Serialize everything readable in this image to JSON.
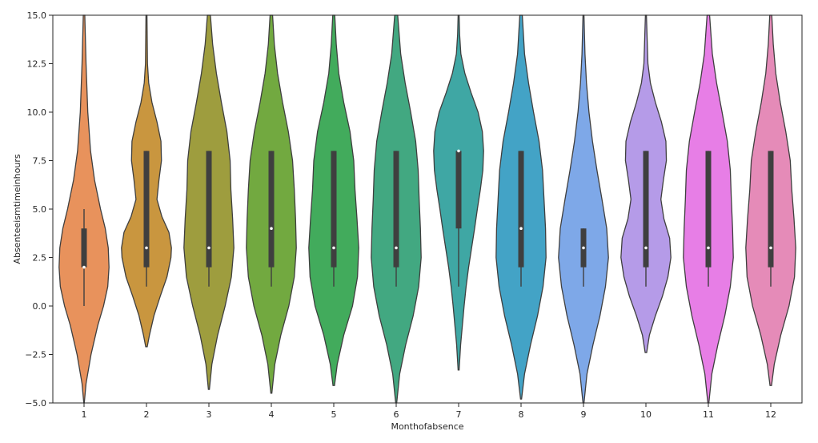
{
  "chart_data": {
    "type": "violin",
    "title": "",
    "xlabel": "Monthofabsence",
    "ylabel": "Absenteeismtimeinhours",
    "ylim": [
      -5.0,
      15.0
    ],
    "yticks": [
      -5.0,
      -2.5,
      0.0,
      2.5,
      5.0,
      7.5,
      10.0,
      12.5,
      15.0
    ],
    "ytick_labels": [
      "−5.0",
      "−2.5",
      "0.0",
      "2.5",
      "5.0",
      "7.5",
      "10.0",
      "12.5",
      "15.0"
    ],
    "categories": [
      "1",
      "2",
      "3",
      "4",
      "5",
      "6",
      "7",
      "8",
      "9",
      "10",
      "11",
      "12"
    ],
    "grid": false,
    "violins": [
      {
        "category": "1",
        "color": "#e8925c",
        "median": 2,
        "q1": 2,
        "q3": 4,
        "whisker_low": 0,
        "whisker_high": 5,
        "extent": [
          -5.0,
          15.0
        ],
        "profile": [
          [
            -5.0,
            0.01
          ],
          [
            -4.0,
            0.08
          ],
          [
            -2.5,
            0.28
          ],
          [
            -1.0,
            0.55
          ],
          [
            0.0,
            0.78
          ],
          [
            1.0,
            0.95
          ],
          [
            2.0,
            1.0
          ],
          [
            3.0,
            0.97
          ],
          [
            4.0,
            0.85
          ],
          [
            5.0,
            0.66
          ],
          [
            6.5,
            0.42
          ],
          [
            8.0,
            0.26
          ],
          [
            10.0,
            0.15
          ],
          [
            12.5,
            0.08
          ],
          [
            15.0,
            0.03
          ]
        ]
      },
      {
        "category": "2",
        "color": "#c9963f",
        "median": 3,
        "q1": 2,
        "q3": 8,
        "whisker_low": 1,
        "whisker_high": 8,
        "extent": [
          -2.1,
          15.0
        ],
        "profile": [
          [
            -2.1,
            0.03
          ],
          [
            -1.5,
            0.12
          ],
          [
            -0.5,
            0.3
          ],
          [
            0.5,
            0.55
          ],
          [
            1.5,
            0.82
          ],
          [
            2.5,
            0.98
          ],
          [
            3.0,
            1.0
          ],
          [
            3.8,
            0.9
          ],
          [
            4.6,
            0.62
          ],
          [
            5.5,
            0.42
          ],
          [
            6.5,
            0.5
          ],
          [
            7.5,
            0.6
          ],
          [
            8.5,
            0.58
          ],
          [
            9.5,
            0.42
          ],
          [
            10.5,
            0.22
          ],
          [
            11.5,
            0.09
          ],
          [
            12.5,
            0.04
          ],
          [
            15.0,
            0.02
          ]
        ]
      },
      {
        "category": "3",
        "color": "#9e9d3e",
        "median": 3,
        "q1": 2,
        "q3": 8,
        "whisker_low": 1,
        "whisker_high": 8,
        "extent": [
          -4.3,
          15.0
        ],
        "profile": [
          [
            -4.3,
            0.02
          ],
          [
            -3.0,
            0.12
          ],
          [
            -1.5,
            0.35
          ],
          [
            0.0,
            0.65
          ],
          [
            1.5,
            0.9
          ],
          [
            3.0,
            1.0
          ],
          [
            4.5,
            0.95
          ],
          [
            6.0,
            0.88
          ],
          [
            7.5,
            0.85
          ],
          [
            9.0,
            0.72
          ],
          [
            10.5,
            0.5
          ],
          [
            12.0,
            0.3
          ],
          [
            13.5,
            0.15
          ],
          [
            15.0,
            0.06
          ]
        ]
      },
      {
        "category": "4",
        "color": "#72a940",
        "median": 4,
        "q1": 2,
        "q3": 8,
        "whisker_low": 1,
        "whisker_high": 8,
        "extent": [
          -4.5,
          15.0
        ],
        "profile": [
          [
            -4.5,
            0.02
          ],
          [
            -3.0,
            0.14
          ],
          [
            -1.5,
            0.38
          ],
          [
            0.0,
            0.7
          ],
          [
            1.5,
            0.92
          ],
          [
            3.0,
            1.0
          ],
          [
            4.5,
            0.97
          ],
          [
            6.0,
            0.92
          ],
          [
            7.5,
            0.85
          ],
          [
            9.0,
            0.68
          ],
          [
            10.5,
            0.45
          ],
          [
            12.0,
            0.25
          ],
          [
            13.5,
            0.12
          ],
          [
            15.0,
            0.05
          ]
        ]
      },
      {
        "category": "5",
        "color": "#42ab5c",
        "median": 3,
        "q1": 2,
        "q3": 8,
        "whisker_low": 1,
        "whisker_high": 8,
        "extent": [
          -4.1,
          15.0
        ],
        "profile": [
          [
            -4.1,
            0.03
          ],
          [
            -3.0,
            0.14
          ],
          [
            -1.5,
            0.4
          ],
          [
            0.0,
            0.75
          ],
          [
            1.5,
            0.95
          ],
          [
            3.0,
            1.0
          ],
          [
            4.5,
            0.93
          ],
          [
            6.0,
            0.85
          ],
          [
            7.5,
            0.8
          ],
          [
            9.0,
            0.65
          ],
          [
            10.5,
            0.4
          ],
          [
            12.0,
            0.2
          ],
          [
            13.5,
            0.1
          ],
          [
            15.0,
            0.04
          ]
        ]
      },
      {
        "category": "6",
        "color": "#42a881",
        "median": 3,
        "q1": 2,
        "q3": 8,
        "whisker_low": 1,
        "whisker_high": 8,
        "extent": [
          -5.0,
          15.0
        ],
        "profile": [
          [
            -5.0,
            0.02
          ],
          [
            -3.5,
            0.14
          ],
          [
            -2.0,
            0.38
          ],
          [
            -0.5,
            0.68
          ],
          [
            1.0,
            0.9
          ],
          [
            2.5,
            1.0
          ],
          [
            4.0,
            0.97
          ],
          [
            5.5,
            0.92
          ],
          [
            7.0,
            0.88
          ],
          [
            8.5,
            0.78
          ],
          [
            10.0,
            0.58
          ],
          [
            11.5,
            0.36
          ],
          [
            13.0,
            0.18
          ],
          [
            15.0,
            0.06
          ]
        ]
      },
      {
        "category": "7",
        "color": "#3fa7a4",
        "median": 8,
        "q1": 4,
        "q3": 8,
        "whisker_low": 1,
        "whisker_high": 8,
        "extent": [
          -3.3,
          15.0
        ],
        "profile": [
          [
            -3.3,
            0.02
          ],
          [
            -2.0,
            0.08
          ],
          [
            -1.0,
            0.15
          ],
          [
            0.0,
            0.22
          ],
          [
            1.0,
            0.3
          ],
          [
            2.0,
            0.4
          ],
          [
            3.0,
            0.52
          ],
          [
            4.0,
            0.64
          ],
          [
            5.0,
            0.75
          ],
          [
            6.0,
            0.87
          ],
          [
            7.0,
            0.97
          ],
          [
            8.0,
            1.0
          ],
          [
            9.0,
            0.95
          ],
          [
            10.0,
            0.78
          ],
          [
            11.0,
            0.5
          ],
          [
            12.0,
            0.25
          ],
          [
            13.0,
            0.09
          ],
          [
            14.0,
            0.04
          ],
          [
            15.0,
            0.02
          ]
        ]
      },
      {
        "category": "8",
        "color": "#43a3c6",
        "median": 4,
        "q1": 2,
        "q3": 8,
        "whisker_low": 1,
        "whisker_high": 8,
        "extent": [
          -4.8,
          15.0
        ],
        "profile": [
          [
            -4.8,
            0.02
          ],
          [
            -3.5,
            0.14
          ],
          [
            -2.0,
            0.38
          ],
          [
            -0.5,
            0.66
          ],
          [
            1.0,
            0.88
          ],
          [
            2.5,
            1.0
          ],
          [
            4.0,
            0.98
          ],
          [
            5.5,
            0.92
          ],
          [
            7.0,
            0.86
          ],
          [
            8.5,
            0.72
          ],
          [
            10.0,
            0.5
          ],
          [
            11.5,
            0.3
          ],
          [
            13.0,
            0.14
          ],
          [
            15.0,
            0.05
          ]
        ]
      },
      {
        "category": "9",
        "color": "#7ea8e8",
        "median": 3,
        "q1": 2,
        "q3": 4,
        "whisker_low": 1,
        "whisker_high": 4,
        "extent": [
          -5.0,
          15.0
        ],
        "profile": [
          [
            -5.0,
            0.02
          ],
          [
            -3.5,
            0.14
          ],
          [
            -2.0,
            0.38
          ],
          [
            -0.5,
            0.66
          ],
          [
            1.0,
            0.88
          ],
          [
            2.5,
            1.0
          ],
          [
            4.0,
            0.93
          ],
          [
            5.5,
            0.74
          ],
          [
            7.0,
            0.54
          ],
          [
            8.5,
            0.36
          ],
          [
            10.0,
            0.22
          ],
          [
            11.5,
            0.12
          ],
          [
            13.0,
            0.06
          ],
          [
            15.0,
            0.02
          ]
        ]
      },
      {
        "category": "10",
        "color": "#b59be8",
        "median": 3,
        "q1": 2,
        "q3": 8,
        "whisker_low": 1,
        "whisker_high": 8,
        "extent": [
          -2.4,
          15.0
        ],
        "profile": [
          [
            -2.4,
            0.03
          ],
          [
            -1.5,
            0.14
          ],
          [
            -0.5,
            0.38
          ],
          [
            0.5,
            0.66
          ],
          [
            1.5,
            0.88
          ],
          [
            2.5,
            1.0
          ],
          [
            3.5,
            0.95
          ],
          [
            4.5,
            0.72
          ],
          [
            5.5,
            0.6
          ],
          [
            6.5,
            0.7
          ],
          [
            7.5,
            0.82
          ],
          [
            8.5,
            0.8
          ],
          [
            9.5,
            0.62
          ],
          [
            10.5,
            0.38
          ],
          [
            11.5,
            0.18
          ],
          [
            12.5,
            0.08
          ],
          [
            15.0,
            0.02
          ]
        ]
      },
      {
        "category": "11",
        "color": "#e77ee6",
        "median": 3,
        "q1": 2,
        "q3": 8,
        "whisker_low": 1,
        "whisker_high": 8,
        "extent": [
          -5.0,
          15.0
        ],
        "profile": [
          [
            -5.0,
            0.02
          ],
          [
            -3.5,
            0.14
          ],
          [
            -2.0,
            0.38
          ],
          [
            -0.5,
            0.66
          ],
          [
            1.0,
            0.88
          ],
          [
            2.5,
            1.0
          ],
          [
            4.0,
            0.97
          ],
          [
            5.5,
            0.92
          ],
          [
            7.0,
            0.88
          ],
          [
            8.5,
            0.76
          ],
          [
            10.0,
            0.55
          ],
          [
            11.5,
            0.33
          ],
          [
            13.0,
            0.16
          ],
          [
            15.0,
            0.05
          ]
        ]
      },
      {
        "category": "12",
        "color": "#e58bb8",
        "median": 3,
        "q1": 2,
        "q3": 8,
        "whisker_low": 1,
        "whisker_high": 8,
        "extent": [
          -4.1,
          15.0
        ],
        "profile": [
          [
            -4.1,
            0.03
          ],
          [
            -3.0,
            0.14
          ],
          [
            -1.5,
            0.4
          ],
          [
            0.0,
            0.73
          ],
          [
            1.5,
            0.95
          ],
          [
            3.0,
            1.0
          ],
          [
            4.5,
            0.93
          ],
          [
            6.0,
            0.84
          ],
          [
            7.5,
            0.78
          ],
          [
            9.0,
            0.6
          ],
          [
            10.5,
            0.38
          ],
          [
            12.0,
            0.2
          ],
          [
            13.5,
            0.1
          ],
          [
            15.0,
            0.04
          ]
        ]
      }
    ]
  }
}
